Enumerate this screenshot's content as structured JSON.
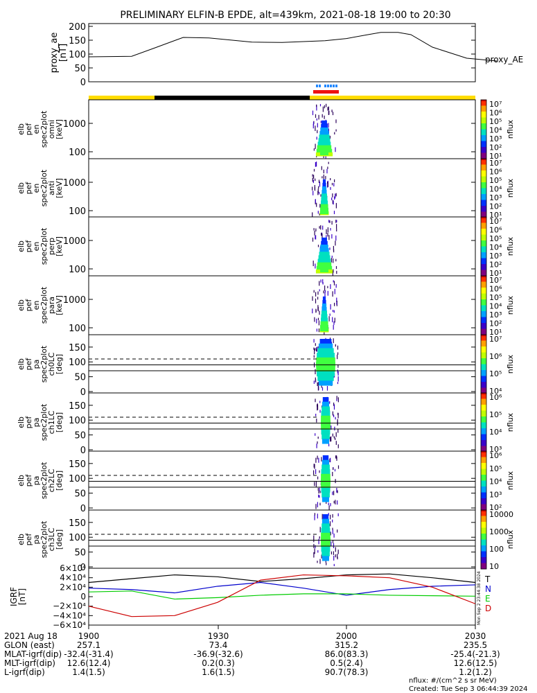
{
  "title": "PRELIMINARY ELFIN-B EPDE, alt=439km, 2021-08-18 19:00 to 20:30",
  "chart_data": [
    {
      "type": "line",
      "panel": "proxy_ae",
      "ylabel": [
        "proxy_ae",
        "[nT]"
      ],
      "legend": "proxy_AE",
      "ylim": [
        0,
        210
      ],
      "yticks": [
        "200",
        "150",
        "100",
        "50",
        "0"
      ],
      "x_minutes": [
        0,
        10,
        15,
        22,
        28,
        38,
        45,
        55,
        60,
        65,
        68,
        72,
        75,
        80,
        88,
        95
      ],
      "values": [
        90,
        92,
        120,
        160,
        158,
        143,
        142,
        148,
        156,
        170,
        178,
        178,
        170,
        125,
        85,
        75
      ]
    },
    {
      "type": "heatmap",
      "panel": "en-omni",
      "ylabel": [
        "elb",
        "pef",
        "en",
        "spec2plot",
        "omni",
        "[keV]"
      ],
      "yticks": [
        "1000",
        "100"
      ],
      "colorbar": {
        "label": "nflux",
        "ticks": [
          "10⁷",
          "10⁶",
          "10⁵",
          "10⁴",
          "10³",
          "10²",
          "10¹"
        ]
      }
    },
    {
      "type": "heatmap",
      "panel": "en-anti",
      "ylabel": [
        "elb",
        "pef",
        "en",
        "spec2plot",
        "anti",
        "[keV]"
      ],
      "yticks": [
        "1000",
        "100"
      ],
      "colorbar": {
        "label": "nflux",
        "ticks": [
          "10⁷",
          "10⁶",
          "10⁵",
          "10⁴",
          "10³",
          "10²",
          "10¹"
        ]
      }
    },
    {
      "type": "heatmap",
      "panel": "en-perp",
      "ylabel": [
        "elb",
        "pef",
        "en",
        "spec2plot",
        "perp",
        "[keV]"
      ],
      "yticks": [
        "1000",
        "100"
      ],
      "colorbar": {
        "label": "nflux",
        "ticks": [
          "10⁷",
          "10⁶",
          "10⁵",
          "10⁴",
          "10³",
          "10²",
          "10¹"
        ]
      }
    },
    {
      "type": "heatmap",
      "panel": "en-para",
      "ylabel": [
        "elb",
        "pef",
        "en",
        "spec2plot",
        "para",
        "[keV]"
      ],
      "yticks": [
        "1000",
        "100"
      ],
      "colorbar": {
        "label": "nflux",
        "ticks": [
          "10⁷",
          "10⁶",
          "10⁵",
          "10⁴",
          "10³",
          "10²",
          "10¹"
        ]
      }
    },
    {
      "type": "heatmap",
      "panel": "pa-ch0LC",
      "ylabel": [
        "elb",
        "pef",
        "pa",
        "spec2plot",
        "ch0LC",
        "[deg]"
      ],
      "yticks": [
        "150",
        "100",
        "50",
        "0"
      ],
      "colorbar": {
        "label": "nflux",
        "ticks": [
          "10⁷",
          "10⁶",
          "10⁵",
          "10⁴"
        ]
      }
    },
    {
      "type": "heatmap",
      "panel": "pa-ch1LC",
      "ylabel": [
        "elb",
        "pef",
        "pa",
        "spec2plot",
        "ch1LC",
        "[deg]"
      ],
      "yticks": [
        "150",
        "100",
        "50",
        "0"
      ],
      "colorbar": {
        "label": "nflux",
        "ticks": [
          "10⁶",
          "10⁵",
          "10⁴",
          "10³"
        ]
      }
    },
    {
      "type": "heatmap",
      "panel": "pa-ch2LC",
      "ylabel": [
        "elb",
        "pef",
        "pa",
        "spec2plot",
        "ch2LC",
        "[deg]"
      ],
      "yticks": [
        "150",
        "100",
        "50",
        "0"
      ],
      "colorbar": {
        "label": "nflux",
        "ticks": [
          "10⁶",
          "10⁵",
          "10⁴",
          "10³",
          "10²"
        ]
      }
    },
    {
      "type": "heatmap",
      "panel": "pa-ch3LC",
      "ylabel": [
        "elb",
        "pef",
        "pa",
        "spec2plot",
        "ch3LC",
        "[deg]"
      ],
      "yticks": [
        "150",
        "100",
        "50",
        "0"
      ],
      "colorbar": {
        "label": "nflux",
        "ticks": [
          "10000",
          "1000",
          "100",
          "10"
        ]
      }
    },
    {
      "type": "line",
      "panel": "igrf",
      "ylabel": [
        "IGRF",
        "[nT]"
      ],
      "ylim": [
        -60000,
        60000
      ],
      "yticks": [
        "6×10⁴",
        "4×10⁴",
        "2×10⁴",
        "0",
        "−2×10⁴",
        "−4×10⁴",
        "−6×10⁴"
      ],
      "legend": [
        "T",
        "N",
        "E",
        "D"
      ],
      "x_minutes": [
        0,
        10,
        20,
        30,
        40,
        50,
        60,
        70,
        80,
        90
      ],
      "series": [
        {
          "name": "T",
          "values": [
            30000,
            38000,
            46000,
            42000,
            32000,
            38000,
            46000,
            48000,
            40000,
            30000
          ]
        },
        {
          "name": "N",
          "values": [
            18000,
            15000,
            8000,
            22000,
            30000,
            18000,
            3000,
            15000,
            22000,
            25000
          ]
        },
        {
          "name": "E",
          "values": [
            10000,
            12000,
            -5000,
            -2000,
            3000,
            6000,
            6000,
            3000,
            2000,
            1000
          ]
        },
        {
          "name": "D",
          "values": [
            -20000,
            -42000,
            -40000,
            -12000,
            35000,
            46000,
            44000,
            40000,
            20000,
            -15000
          ]
        }
      ]
    }
  ],
  "x_axis": {
    "tick_labels": [
      "1900",
      "1930",
      "2000",
      "2030"
    ],
    "rows": [
      {
        "label": "2021 Aug 18",
        "values": [
          "1900",
          "1930",
          "2000",
          "2030"
        ]
      },
      {
        "label": "GLON (east)",
        "values": [
          "257.1",
          "73.4",
          "315.2",
          "235.5"
        ]
      },
      {
        "label": "MLAT-igrf(dip)",
        "values": [
          "-32.4(-31.4)",
          "-36.9(-32.6)",
          "86.0(83.3)",
          "-25.4(-21.3)"
        ]
      },
      {
        "label": "MLT-igrf(dip)",
        "values": [
          "12.6(12.4)",
          "0.2(0.3)",
          "0.5(2.4)",
          "12.6(12.5)"
        ]
      },
      {
        "label": "L-igrf(dip)",
        "values": [
          "1.4(1.5)",
          "1.6(1.5)",
          "90.7(78.3)",
          "1.2(1.2)"
        ]
      }
    ]
  },
  "footer": {
    "units": "nflux: #/(cm^2 s sr MeV)",
    "created": "Created: Tue Sep  3 06:44:39 2024",
    "side_stamp": "Mon Sep  2 23:44:38 2024"
  },
  "colors": {
    "sunlit": "#ffdd00",
    "shadow": "#000000",
    "fast_marker": "#ee1111",
    "science_marker": "#2288ff",
    "T": "#000000",
    "N": "#0000cc",
    "E": "#00cc00",
    "D": "#cc0000"
  }
}
